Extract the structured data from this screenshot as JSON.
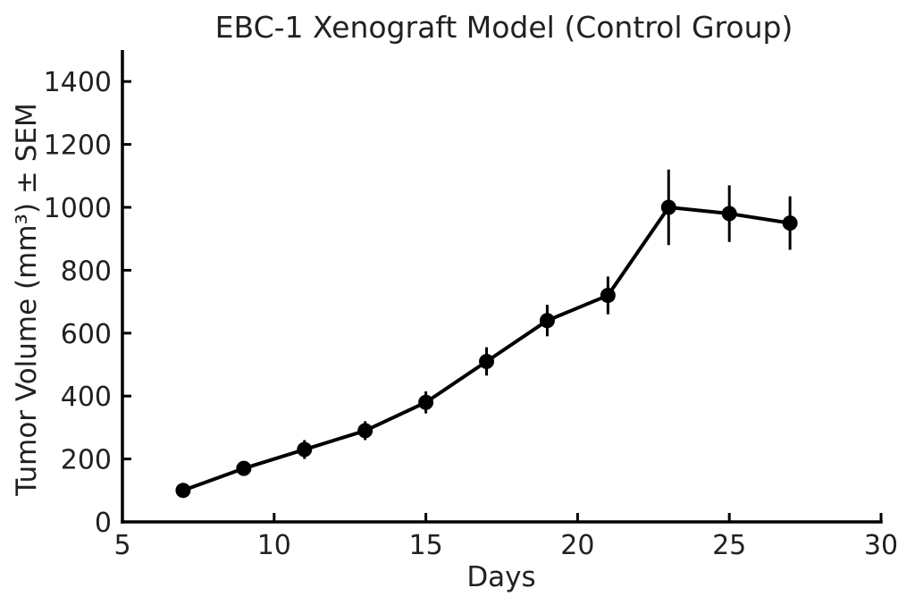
{
  "figure": {
    "background": "#ffffff",
    "line_color": "#000000",
    "text_color": "#212121"
  },
  "chart_data": {
    "type": "line",
    "title": "EBC-1 Xenograft Model (Control Group)",
    "xlabel": "Days",
    "ylabel": "Tumor Volume (mm³) ± SEM",
    "x": [
      7,
      9,
      11,
      13,
      15,
      17,
      19,
      21,
      23,
      25,
      27
    ],
    "series": [
      {
        "name": "Control",
        "values": [
          100,
          170,
          230,
          290,
          380,
          510,
          640,
          720,
          1000,
          980,
          950
        ],
        "sem": [
          10,
          15,
          30,
          30,
          35,
          45,
          50,
          60,
          120,
          90,
          85
        ],
        "color": "#000000",
        "marker": "circle"
      }
    ],
    "xlim": [
      5,
      30
    ],
    "ylim": [
      0,
      1500
    ],
    "xticks": [
      5,
      10,
      15,
      20,
      25,
      30
    ],
    "yticks": [
      0,
      200,
      400,
      600,
      800,
      1000,
      1200,
      1400
    ],
    "grid": false,
    "legend": "none",
    "error_bars": true,
    "tick_direction": "in",
    "spines": [
      "left",
      "bottom"
    ]
  }
}
